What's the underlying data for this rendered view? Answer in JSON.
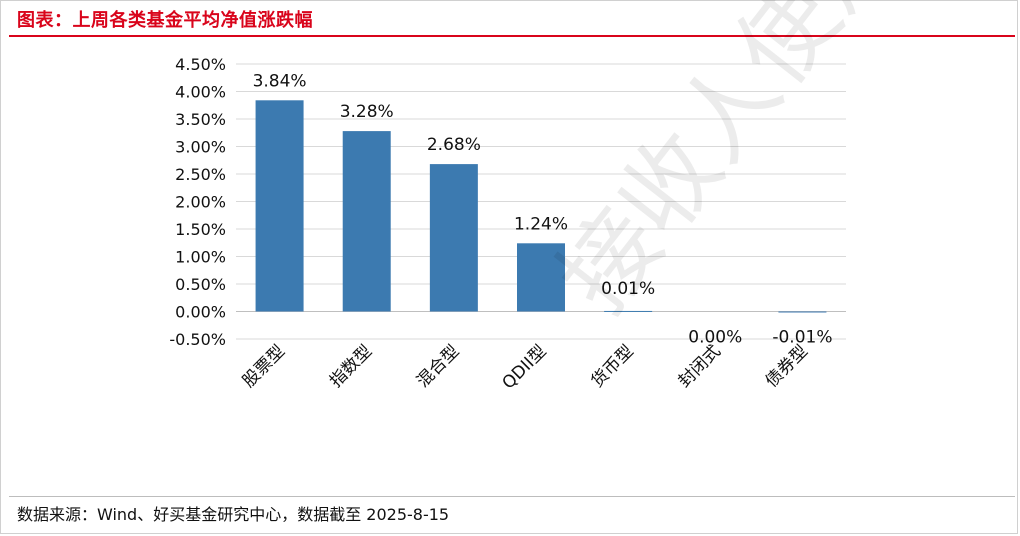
{
  "title": "图表：上周各类基金平均净值涨跌幅",
  "source": "数据来源：Wind、好买基金研究中心，数据截至  2025-8-15",
  "watermark": "接收人使用",
  "colors": {
    "accent": "#d9041b",
    "bar": "#3c7ab0",
    "grid": "#d9d9d9",
    "text": "#111111"
  },
  "chart_data": {
    "type": "bar",
    "title": "",
    "xlabel": "",
    "ylabel": "",
    "categories": [
      "股票型",
      "指数型",
      "混合型",
      "QDII型",
      "货币型",
      "封闭式",
      "债券型"
    ],
    "values": [
      3.84,
      3.28,
      2.68,
      1.24,
      0.01,
      0.0,
      -0.01
    ],
    "value_labels": [
      "3.84%",
      "3.28%",
      "2.68%",
      "1.24%",
      "0.01%",
      "0.00%",
      "-0.01%"
    ],
    "yticks": [
      -0.5,
      0,
      0.5,
      1,
      1.5,
      2,
      2.5,
      3,
      3.5,
      4,
      4.5
    ],
    "ytick_labels": [
      "-0.50%",
      "0.00%",
      "0.50%",
      "1.00%",
      "1.50%",
      "2.00%",
      "2.50%",
      "3.00%",
      "3.50%",
      "4.00%",
      "4.50%"
    ],
    "ylim": [
      -0.5,
      4.5
    ],
    "grid": true,
    "legend": "none"
  }
}
